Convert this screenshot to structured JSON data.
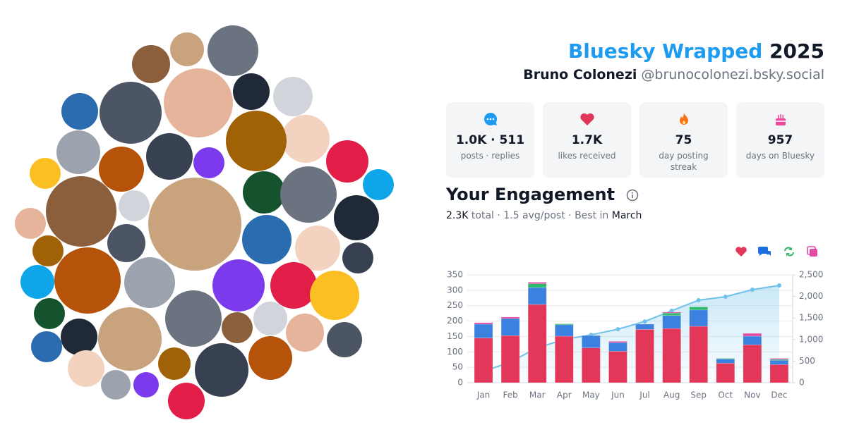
{
  "header": {
    "title": "Bluesky Wrapped",
    "year": "2025",
    "name": "Bruno Colonezi",
    "handle": "@brunocolonezi.bsky.social"
  },
  "stats": [
    {
      "value": "1.0K · 511",
      "label": "posts · replies"
    },
    {
      "value": "1.7K",
      "label": "likes received"
    },
    {
      "value": "75",
      "label": "day posting streak"
    },
    {
      "value": "957",
      "label": "days on Bluesky"
    }
  ],
  "engagement": {
    "title": "Your Engagement",
    "total": "2.3K",
    "total_label": "total ·",
    "avg": "1.5 avg/post ·",
    "best_label": "Best in",
    "best": "March"
  },
  "chart_data": {
    "type": "bar",
    "stacked": true,
    "grid": true,
    "categories": [
      "Jan",
      "Feb",
      "Mar",
      "Apr",
      "May",
      "Jun",
      "Jul",
      "Aug",
      "Sep",
      "Oct",
      "Nov",
      "Dec"
    ],
    "series": [
      {
        "type": "bar",
        "color": "#e3375a",
        "values": [
          145,
          153,
          254,
          151,
          113,
          102,
          173,
          176,
          183,
          63,
          123,
          59
        ]
      },
      {
        "type": "bar",
        "color": "#3b82e0",
        "values": [
          45,
          55,
          55,
          37,
          40,
          28,
          17,
          42,
          53,
          14,
          28,
          14
        ]
      },
      {
        "type": "bar",
        "color": "#2fb96b",
        "values": [
          0,
          0,
          12,
          3,
          0,
          0,
          0,
          8,
          10,
          2,
          0,
          3
        ]
      },
      {
        "type": "bar",
        "color": "#e24aa3",
        "values": [
          5,
          5,
          5,
          0,
          0,
          4,
          0,
          3,
          0,
          0,
          9,
          3
        ]
      },
      {
        "type": "line",
        "axis": "y2",
        "color": "#6ec1ea",
        "values": [
          260,
          480,
          810,
          1000,
          1110,
          1240,
          1420,
          1667,
          1912,
          1993,
          2157,
          2255
        ]
      }
    ],
    "ylim": [
      0,
      350
    ],
    "yticks": [
      0,
      50,
      100,
      150,
      200,
      250,
      300,
      350
    ],
    "y2lim": [
      0,
      2500
    ],
    "y2ticks": [
      0,
      500,
      {
        "value": 1000,
        "label": "1,000"
      },
      {
        "value": 1500,
        "label": "1,500"
      },
      {
        "value": 2000,
        "label": "2,000"
      },
      {
        "value": 2500,
        "label": "2,500"
      }
    ]
  }
}
